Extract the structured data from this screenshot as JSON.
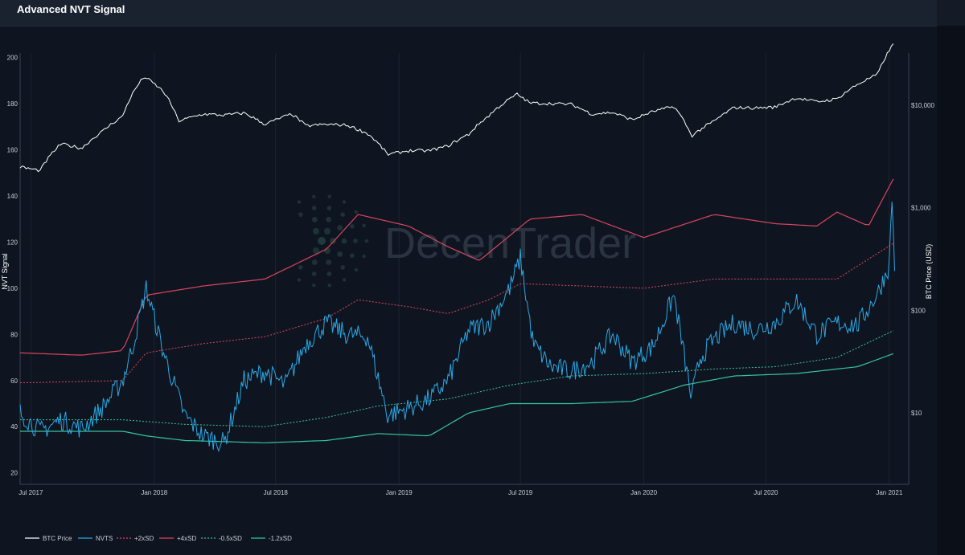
{
  "header": {
    "title": "Advanced NVT Signal"
  },
  "watermark": {
    "text": "DecenTrader"
  },
  "colors": {
    "background": "#0f1520",
    "btc_price": "#ffffff",
    "nvts": "#2aa8e6",
    "plus2sd": "#d9455f",
    "plus4sd": "#d9455f",
    "minus05sd": "#35c4a0",
    "minus12sd": "#35c4a0",
    "grid": "#1b2330"
  },
  "chart_data": {
    "type": "line",
    "title": "Advanced NVT Signal",
    "ylabel": "NVT Signal",
    "y2label": "BTC Price (USD)",
    "y_ticks": [
      20,
      40,
      60,
      80,
      100,
      120,
      140,
      160,
      180,
      200
    ],
    "ylim": [
      15,
      202
    ],
    "y2_ticks": [
      "$10",
      "$100",
      "$1,000",
      "$10,000"
    ],
    "y2_scale": "log",
    "x_ticks": [
      "Jul 2017",
      "Jan 2018",
      "Jul 2018",
      "Jan 2019",
      "Jul 2019",
      "Jan 2020",
      "Jul 2020",
      "Jan 2021"
    ],
    "grid": "vertical",
    "legend_position": "bottom-left",
    "series": [
      {
        "name": "BTC Price",
        "style": "solid",
        "x": [
          "2017-06-15",
          "2017-07-15",
          "2017-08-15",
          "2017-09-15",
          "2017-10-15",
          "2017-11-15",
          "2017-12-17",
          "2018-01-15",
          "2018-02-06",
          "2018-03-15",
          "2018-04-15",
          "2018-05-15",
          "2018-06-15",
          "2018-07-25",
          "2018-08-15",
          "2018-09-15",
          "2018-10-15",
          "2018-11-15",
          "2018-12-15",
          "2019-01-15",
          "2019-02-15",
          "2019-03-15",
          "2019-04-15",
          "2019-05-15",
          "2019-06-26",
          "2019-07-15",
          "2019-08-15",
          "2019-09-15",
          "2019-10-15",
          "2019-11-15",
          "2019-12-15",
          "2020-01-15",
          "2020-02-15",
          "2020-03-12",
          "2020-04-15",
          "2020-05-15",
          "2020-06-15",
          "2020-07-15",
          "2020-08-15",
          "2020-09-15",
          "2020-10-15",
          "2020-11-15",
          "2020-12-15",
          "2021-01-08"
        ],
        "values": [
          2500,
          2300,
          4200,
          3800,
          5500,
          7800,
          19000,
          13500,
          7000,
          8200,
          8000,
          8400,
          6500,
          8200,
          6300,
          6500,
          6400,
          5300,
          3300,
          3600,
          3600,
          4000,
          5200,
          7900,
          12800,
          10500,
          10400,
          10200,
          8200,
          8500,
          7200,
          8700,
          9700,
          5000,
          7000,
          9500,
          9400,
          9600,
          11800,
          10800,
          11500,
          16000,
          20000,
          40000
        ]
      },
      {
        "name": "NVTS",
        "style": "solid",
        "x": [
          "2017-06-15",
          "2017-07-15",
          "2017-08-15",
          "2017-09-15",
          "2017-10-15",
          "2017-11-15",
          "2017-12-01",
          "2017-12-20",
          "2018-01-15",
          "2018-02-15",
          "2018-03-15",
          "2018-04-15",
          "2018-05-15",
          "2018-06-15",
          "2018-07-15",
          "2018-08-15",
          "2018-09-15",
          "2018-10-15",
          "2018-11-15",
          "2018-12-15",
          "2019-01-15",
          "2019-02-15",
          "2019-03-15",
          "2019-04-15",
          "2019-05-15",
          "2019-06-15",
          "2019-07-01",
          "2019-07-20",
          "2019-08-15",
          "2019-09-15",
          "2019-10-15",
          "2019-11-15",
          "2019-12-15",
          "2020-01-15",
          "2020-02-15",
          "2020-03-12",
          "2020-03-25",
          "2020-04-15",
          "2020-05-15",
          "2020-06-15",
          "2020-07-15",
          "2020-08-15",
          "2020-09-15",
          "2020-10-15",
          "2020-11-15",
          "2020-12-15",
          "2021-01-01",
          "2021-01-05",
          "2021-01-10"
        ],
        "values": [
          46,
          38,
          43,
          39,
          48,
          60,
          76,
          100,
          72,
          45,
          36,
          33,
          60,
          64,
          58,
          76,
          85,
          80,
          79,
          45,
          48,
          52,
          60,
          82,
          85,
          100,
          113,
          76,
          66,
          64,
          68,
          80,
          68,
          75,
          97,
          52,
          70,
          78,
          85,
          82,
          85,
          95,
          80,
          85,
          84,
          98,
          110,
          140,
          100
        ]
      },
      {
        "name": "+2xSD",
        "style": "dashed",
        "x": [
          "2017-06-15",
          "2017-11-15",
          "2017-12-20",
          "2018-03-15",
          "2018-06-15",
          "2018-09-15",
          "2018-11-01",
          "2019-01-15",
          "2019-03-15",
          "2019-05-15",
          "2019-07-01",
          "2019-10-01",
          "2020-01-01",
          "2020-04-15",
          "2020-07-15",
          "2020-10-15",
          "2021-01-10"
        ],
        "values": [
          59,
          60,
          72,
          76,
          79,
          87,
          95,
          92,
          89,
          95,
          102,
          101,
          100,
          104,
          104,
          104,
          120
        ]
      },
      {
        "name": "+4xSD",
        "style": "solid",
        "x": [
          "2017-06-15",
          "2017-09-15",
          "2017-11-15",
          "2017-12-20",
          "2018-03-15",
          "2018-06-15",
          "2018-09-15",
          "2018-11-01",
          "2019-01-15",
          "2019-03-15",
          "2019-05-01",
          "2019-07-15",
          "2019-10-01",
          "2020-01-01",
          "2020-04-15",
          "2020-07-15",
          "2020-09-15",
          "2020-10-15",
          "2020-12-01",
          "2021-01-10"
        ],
        "values": [
          72,
          71,
          73,
          97,
          101,
          104,
          117,
          132,
          127,
          118,
          112,
          130,
          132,
          122,
          132,
          128,
          127,
          133,
          127,
          149
        ]
      },
      {
        "name": "-0.5xSD",
        "style": "dashed",
        "x": [
          "2017-06-15",
          "2017-11-15",
          "2018-02-15",
          "2018-06-15",
          "2018-09-15",
          "2018-12-01",
          "2019-03-15",
          "2019-06-15",
          "2019-09-15",
          "2020-01-01",
          "2020-04-15",
          "2020-07-15",
          "2020-10-15",
          "2021-01-10"
        ],
        "values": [
          43,
          43,
          41,
          40,
          44,
          49,
          52,
          58,
          62,
          63,
          65,
          66,
          70,
          82
        ]
      },
      {
        "name": "-1.2xSD",
        "style": "solid",
        "x": [
          "2017-06-15",
          "2017-11-15",
          "2017-12-20",
          "2018-02-15",
          "2018-06-15",
          "2018-09-15",
          "2018-12-01",
          "2019-02-15",
          "2019-04-15",
          "2019-06-15",
          "2019-09-15",
          "2019-12-15",
          "2020-03-01",
          "2020-05-15",
          "2020-08-15",
          "2020-11-15",
          "2021-01-01",
          "2021-01-10"
        ],
        "values": [
          38,
          38,
          36,
          34,
          33,
          34,
          37,
          36,
          46,
          50,
          50,
          51,
          58,
          62,
          63,
          66,
          71,
          72
        ]
      }
    ]
  }
}
